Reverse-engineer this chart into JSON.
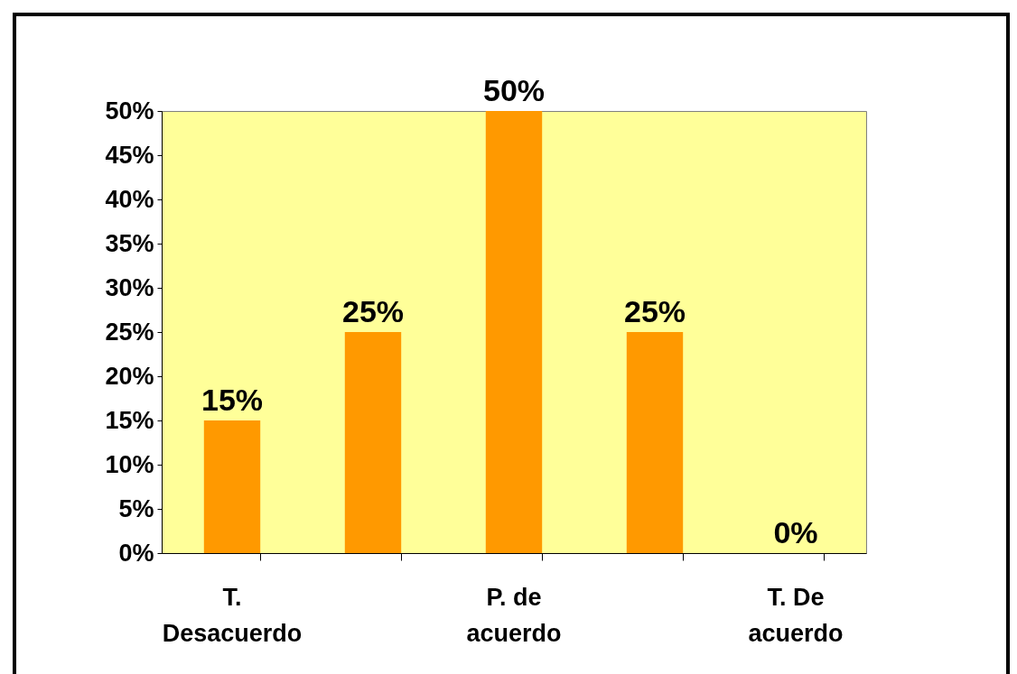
{
  "chart_data": {
    "type": "bar",
    "categories": [
      "T. Desacuerdo",
      null,
      "P. de acuerdo",
      null,
      "T. De acuerdo"
    ],
    "values": [
      15,
      25,
      50,
      25,
      0
    ],
    "value_labels": [
      "15%",
      "25%",
      "50%",
      "25%",
      "0%"
    ],
    "color": "#ff9900",
    "ylim": [
      0,
      50
    ],
    "yticks": [
      {
        "value": 0,
        "label": "0%"
      },
      {
        "value": 5,
        "label": "5%"
      },
      {
        "value": 10,
        "label": "10%"
      },
      {
        "value": 15,
        "label": "15%"
      },
      {
        "value": 20,
        "label": "20%"
      },
      {
        "value": 25,
        "label": "25%"
      },
      {
        "value": 30,
        "label": "30%"
      },
      {
        "value": 35,
        "label": "35%"
      },
      {
        "value": 40,
        "label": "40%"
      },
      {
        "value": 45,
        "label": "45%"
      },
      {
        "value": 50,
        "label": "50%"
      }
    ],
    "grid": false
  }
}
